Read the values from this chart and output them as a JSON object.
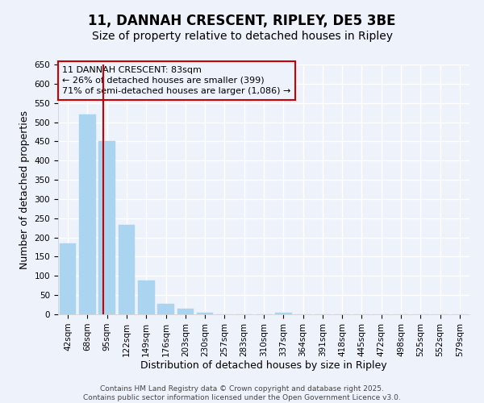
{
  "title": "11, DANNAH CRESCENT, RIPLEY, DE5 3BE",
  "subtitle": "Size of property relative to detached houses in Ripley",
  "xlabel": "Distribution of detached houses by size in Ripley",
  "ylabel": "Number of detached properties",
  "bar_labels": [
    "42sqm",
    "68sqm",
    "95sqm",
    "122sqm",
    "149sqm",
    "176sqm",
    "203sqm",
    "230sqm",
    "257sqm",
    "283sqm",
    "310sqm",
    "337sqm",
    "364sqm",
    "391sqm",
    "418sqm",
    "445sqm",
    "472sqm",
    "498sqm",
    "525sqm",
    "552sqm",
    "579sqm"
  ],
  "bar_values": [
    185,
    520,
    450,
    232,
    88,
    27,
    14,
    4,
    1,
    0,
    0,
    5,
    1,
    0,
    0,
    0,
    0,
    1,
    0,
    0,
    1
  ],
  "bar_color": "#aad4f0",
  "bar_edge_color": "#aad4f0",
  "ylim": [
    0,
    650
  ],
  "yticks": [
    0,
    50,
    100,
    150,
    200,
    250,
    300,
    350,
    400,
    450,
    500,
    550,
    600,
    650
  ],
  "vline_x": 1.82,
  "vline_color": "#cc0000",
  "annotation_text": "11 DANNAH CRESCENT: 83sqm\n← 26% of detached houses are smaller (399)\n71% of semi-detached houses are larger (1,086) →",
  "annotation_box_color": "#cc0000",
  "footer_line1": "Contains HM Land Registry data © Crown copyright and database right 2025.",
  "footer_line2": "Contains public sector information licensed under the Open Government Licence v3.0.",
  "background_color": "#eef2fb",
  "grid_color": "#ffffff",
  "title_fontsize": 12,
  "subtitle_fontsize": 10,
  "axis_label_fontsize": 9,
  "tick_fontsize": 7.5,
  "footer_fontsize": 6.5
}
